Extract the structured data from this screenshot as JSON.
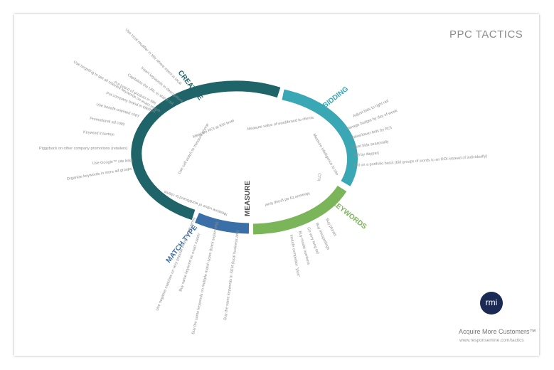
{
  "title": "PPC TACTICS",
  "logo_text": "rmi",
  "tagline": "Acquire More Customers™",
  "url": "www.responsemine.com/tactics",
  "colors": {
    "creative": "#1f6468",
    "bidding": "#3aa7b5",
    "keywords": "#7ab55a",
    "match_type": "#3b6fa8",
    "measure": "#555555",
    "text": "#8f8f8f"
  },
  "categories": {
    "creative": {
      "label": "CREATIVE",
      "items": [
        "Use local modifier in title where intent is local",
        "Insert keywords in descriptions",
        "Capitalize the URL to stand out",
        "Put brand of product in title",
        "Put company brand in title/text",
        "Use benefit-oriented copy",
        "Promotional ad copy",
        "Keyword insertion",
        "Piggyback on other company promotions (retailers)",
        "Use Google™ site links",
        "Organize keywords in more ad groups",
        "Use targeting to get all relevant keywords on exact match"
      ]
    },
    "bidding": {
      "label": "BIDDING",
      "items": [
        "Adjust bids to right rail",
        "Manage budget by day of week",
        "Raise/lower bids by ROI",
        "Adjust bids seasonally",
        "Bid by daypart",
        "Bid on a portfolio basis (bid groups of words to an ROI instead of individually)"
      ]
    },
    "keywords": {
      "label": "KEYWORDS",
      "items": [
        "Buy plurals",
        "Buy misspellings",
        "Go very long tail",
        "Buy model numbers",
        "Include competitor \"plus\""
      ]
    },
    "match_type": {
      "label": "MATCH TYPE",
      "items": [
        "Use negative matches on very popular broad match terms",
        "Buy same keyword on exact match",
        "Buy the same keywords on multiple match types (track separately)",
        "Buy the same keywords in SEM (local business ads)"
      ]
    },
    "measure": {
      "label": "MEASURE",
      "items": [
        "Measure value of word/brand to clients",
        "Measure ROI at KW level",
        "Use call watch to measure phone",
        "Measure intelligence to site",
        "CTR",
        "Measure by ad group level"
      ]
    }
  }
}
